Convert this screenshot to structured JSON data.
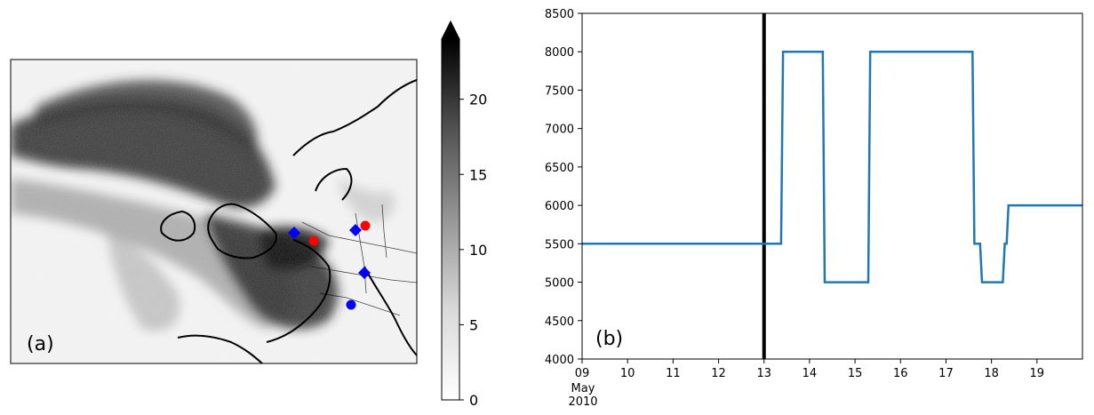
{
  "chart_data": [
    {
      "panel_label": "(a)",
      "type": "heatmap",
      "colorbar": {
        "ticks": [
          0,
          5,
          10,
          15,
          20
        ],
        "range": [
          0,
          24
        ],
        "extend": "max",
        "colormap": "Greys"
      },
      "markers": [
        {
          "shape": "diamond",
          "color": "#0000ff"
        },
        {
          "shape": "circle",
          "color": "#ff0000"
        },
        {
          "shape": "diamond",
          "color": "#0000ff"
        },
        {
          "shape": "circle",
          "color": "#ff0000"
        },
        {
          "shape": "diamond",
          "color": "#0000ff"
        },
        {
          "shape": "circle",
          "color": "#0000ff"
        }
      ]
    },
    {
      "panel_label": "(b)",
      "type": "line",
      "x_tick_labels": [
        "09",
        "10",
        "11",
        "12",
        "13",
        "14",
        "15",
        "16",
        "17",
        "18",
        "19"
      ],
      "x_tick_sublabel": [
        "May",
        "2010"
      ],
      "xlim": [
        "2010-05-09",
        "2010-05-20"
      ],
      "ylim": [
        4000,
        8500
      ],
      "y_ticks": [
        4000,
        4500,
        5000,
        5500,
        6000,
        6500,
        7000,
        7500,
        8000,
        8500
      ],
      "vline": {
        "x": "2010-05-13",
        "color": "#000000"
      },
      "series": [
        {
          "color": "#1f77b4",
          "x": [
            "2010-05-09 00:00",
            "2010-05-13 09:00",
            "2010-05-13 10:00",
            "2010-05-14 07:00",
            "2010-05-14 08:00",
            "2010-05-15 07:00",
            "2010-05-15 08:00",
            "2010-05-17 14:00",
            "2010-05-17 15:00",
            "2010-05-17 18:00",
            "2010-05-17 19:00",
            "2010-05-18 06:00",
            "2010-05-18 07:00",
            "2010-05-18 08:00",
            "2010-05-18 09:00",
            "2010-05-20 00:00"
          ],
          "y": [
            5500,
            5500,
            8000,
            8000,
            5000,
            5000,
            8000,
            8000,
            5500,
            5500,
            5000,
            5000,
            5500,
            5500,
            6000,
            6000
          ]
        }
      ]
    }
  ]
}
